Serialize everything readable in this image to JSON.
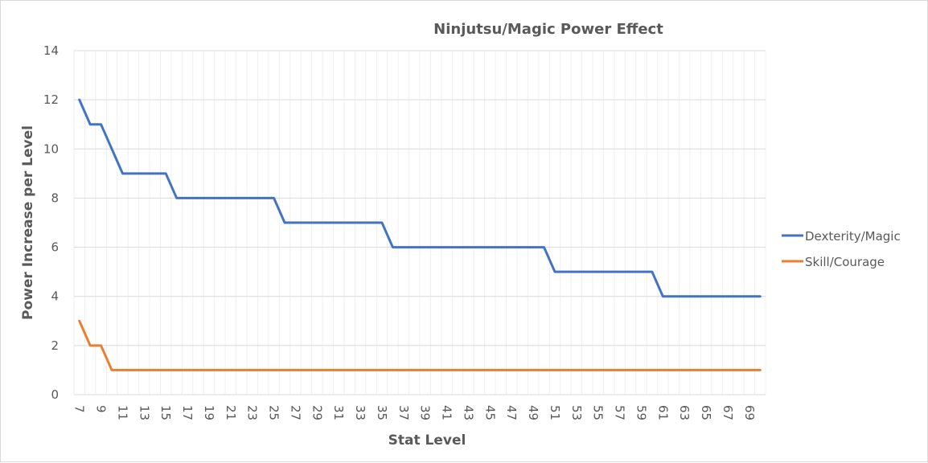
{
  "chart_data": {
    "type": "line",
    "title": "Ninjutsu/Magic Power Effect",
    "xlabel": "Stat Level",
    "ylabel": "Power Increase per Level",
    "ylim": [
      0,
      14
    ],
    "yticks": [
      0,
      2,
      4,
      6,
      8,
      10,
      12,
      14
    ],
    "grid": true,
    "legend_position": "right",
    "x": [
      7,
      8,
      9,
      10,
      11,
      12,
      13,
      14,
      15,
      16,
      17,
      18,
      19,
      20,
      21,
      22,
      23,
      24,
      25,
      26,
      27,
      28,
      29,
      30,
      31,
      32,
      33,
      34,
      35,
      36,
      37,
      38,
      39,
      40,
      41,
      42,
      43,
      44,
      45,
      46,
      47,
      48,
      49,
      50,
      51,
      52,
      53,
      54,
      55,
      56,
      57,
      58,
      59,
      60,
      61,
      62,
      63,
      64,
      65,
      66,
      67,
      68,
      69,
      70
    ],
    "xtick_labels": [
      "7",
      "9",
      "11",
      "13",
      "15",
      "17",
      "19",
      "21",
      "23",
      "25",
      "27",
      "29",
      "31",
      "33",
      "35",
      "37",
      "39",
      "41",
      "43",
      "45",
      "47",
      "49",
      "51",
      "53",
      "55",
      "57",
      "59",
      "61",
      "63",
      "65",
      "67",
      "69"
    ],
    "series": [
      {
        "name": "Dexterity/Magic",
        "color": "#4472c4",
        "values": [
          12,
          11,
          11,
          10,
          9,
          9,
          9,
          9,
          9,
          8,
          8,
          8,
          8,
          8,
          8,
          8,
          8,
          8,
          8,
          7,
          7,
          7,
          7,
          7,
          7,
          7,
          7,
          7,
          7,
          6,
          6,
          6,
          6,
          6,
          6,
          6,
          6,
          6,
          6,
          6,
          6,
          6,
          6,
          6,
          5,
          5,
          5,
          5,
          5,
          5,
          5,
          5,
          5,
          5,
          4,
          4,
          4,
          4,
          4,
          4,
          4,
          4,
          4,
          4
        ]
      },
      {
        "name": "Skill/Courage",
        "color": "#ed7d31",
        "values": [
          3,
          2,
          2,
          1,
          1,
          1,
          1,
          1,
          1,
          1,
          1,
          1,
          1,
          1,
          1,
          1,
          1,
          1,
          1,
          1,
          1,
          1,
          1,
          1,
          1,
          1,
          1,
          1,
          1,
          1,
          1,
          1,
          1,
          1,
          1,
          1,
          1,
          1,
          1,
          1,
          1,
          1,
          1,
          1,
          1,
          1,
          1,
          1,
          1,
          1,
          1,
          1,
          1,
          1,
          1,
          1,
          1,
          1,
          1,
          1,
          1,
          1,
          1,
          1
        ]
      }
    ]
  },
  "colors": {
    "text": "#595959",
    "gridline": "#d9d9d9",
    "minor_gridline": "#efefef"
  }
}
